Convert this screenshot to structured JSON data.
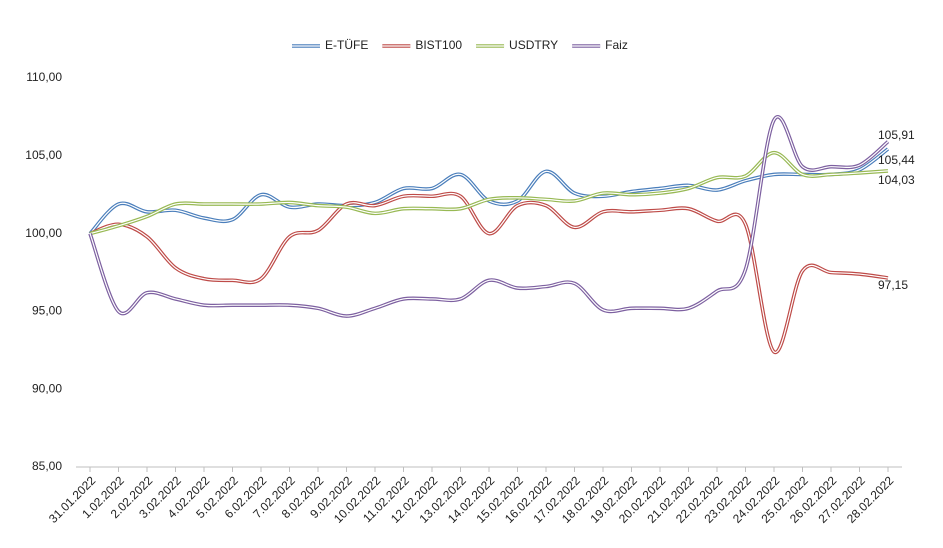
{
  "chart_data": {
    "type": "line",
    "categories": [
      "31.01.2022",
      "1.02.2022",
      "2.02.2022",
      "3.02.2022",
      "4.02.2022",
      "5.02.2022",
      "6.02.2022",
      "7.02.2022",
      "8.02.2022",
      "9.02.2022",
      "10.02.2022",
      "11.02.2022",
      "12.02.2022",
      "13.02.2022",
      "14.02.2022",
      "15.02.2022",
      "16.02.2022",
      "17.02.2022",
      "18.02.2022",
      "19.02.2022",
      "20.02.2022",
      "21.02.2022",
      "22.02.2022",
      "23.02.2022",
      "24.02.2022",
      "25.02.2022",
      "26.02.2022",
      "27.02.2022",
      "28.02.2022"
    ],
    "series": [
      {
        "name": "E-TÜFE",
        "color": "#4a7ebb",
        "values": [
          100,
          101.9,
          101.4,
          101.5,
          101.0,
          100.9,
          102.5,
          101.7,
          101.9,
          101.8,
          102.0,
          102.9,
          102.9,
          103.8,
          102.1,
          102.1,
          104.0,
          102.6,
          102.4,
          102.7,
          102.9,
          103.1,
          102.8,
          103.4,
          103.8,
          103.8,
          103.8,
          104.1,
          105.44
        ],
        "value_labels": [
          null,
          null,
          null,
          null,
          null,
          null,
          null,
          null,
          null,
          null,
          null,
          null,
          null,
          null,
          null,
          null,
          null,
          null,
          null,
          null,
          null,
          null,
          null,
          null,
          null,
          null,
          null,
          null,
          "105,44"
        ]
      },
      {
        "name": "BIST100",
        "color": "#be4b48",
        "values": [
          100,
          100.6,
          99.8,
          97.8,
          97.1,
          97.0,
          97.1,
          99.8,
          100.2,
          101.9,
          101.8,
          102.4,
          102.4,
          102.4,
          100.0,
          101.8,
          101.8,
          100.4,
          101.4,
          101.4,
          101.5,
          101.6,
          100.8,
          100.6,
          92.4,
          97.6,
          97.5,
          97.4,
          97.15
        ],
        "value_labels": [
          null,
          null,
          null,
          null,
          null,
          null,
          null,
          null,
          null,
          null,
          null,
          null,
          null,
          null,
          null,
          null,
          null,
          null,
          null,
          null,
          null,
          null,
          null,
          null,
          null,
          null,
          null,
          null,
          "97,15"
        ]
      },
      {
        "name": "USDTRY",
        "color": "#98b954",
        "values": [
          100,
          100.5,
          101.1,
          101.9,
          101.9,
          101.9,
          101.9,
          102.0,
          101.8,
          101.7,
          101.3,
          101.6,
          101.6,
          101.6,
          102.2,
          102.3,
          102.2,
          102.1,
          102.6,
          102.5,
          102.6,
          102.9,
          103.6,
          103.7,
          105.2,
          103.8,
          103.8,
          103.9,
          104.03
        ],
        "value_labels": [
          null,
          null,
          null,
          null,
          null,
          null,
          null,
          null,
          null,
          null,
          null,
          null,
          null,
          null,
          null,
          null,
          null,
          null,
          null,
          null,
          null,
          null,
          null,
          null,
          null,
          null,
          null,
          null,
          "104,03"
        ]
      },
      {
        "name": "Faiz",
        "color": "#7d60a0",
        "values": [
          100,
          95.0,
          96.2,
          95.8,
          95.4,
          95.4,
          95.4,
          95.4,
          95.2,
          94.7,
          95.2,
          95.8,
          95.8,
          95.8,
          97.0,
          96.5,
          96.6,
          96.8,
          95.1,
          95.2,
          95.2,
          95.2,
          96.3,
          97.7,
          107.3,
          104.3,
          104.3,
          104.4,
          105.91
        ],
        "value_labels": [
          null,
          null,
          null,
          null,
          null,
          null,
          null,
          null,
          null,
          null,
          null,
          null,
          null,
          null,
          null,
          null,
          null,
          null,
          null,
          null,
          null,
          null,
          null,
          null,
          null,
          null,
          null,
          null,
          "105,91"
        ]
      }
    ],
    "ylim": [
      85,
      110
    ],
    "yticks": [
      {
        "value": 85,
        "label": "85,00"
      },
      {
        "value": 90,
        "label": "90,00"
      },
      {
        "value": 95,
        "label": "95,00"
      },
      {
        "value": 100,
        "label": "100,00"
      },
      {
        "value": 105,
        "label": "105,00"
      },
      {
        "value": 110,
        "label": "110,00"
      }
    ],
    "legend": "top",
    "grid": false
  }
}
